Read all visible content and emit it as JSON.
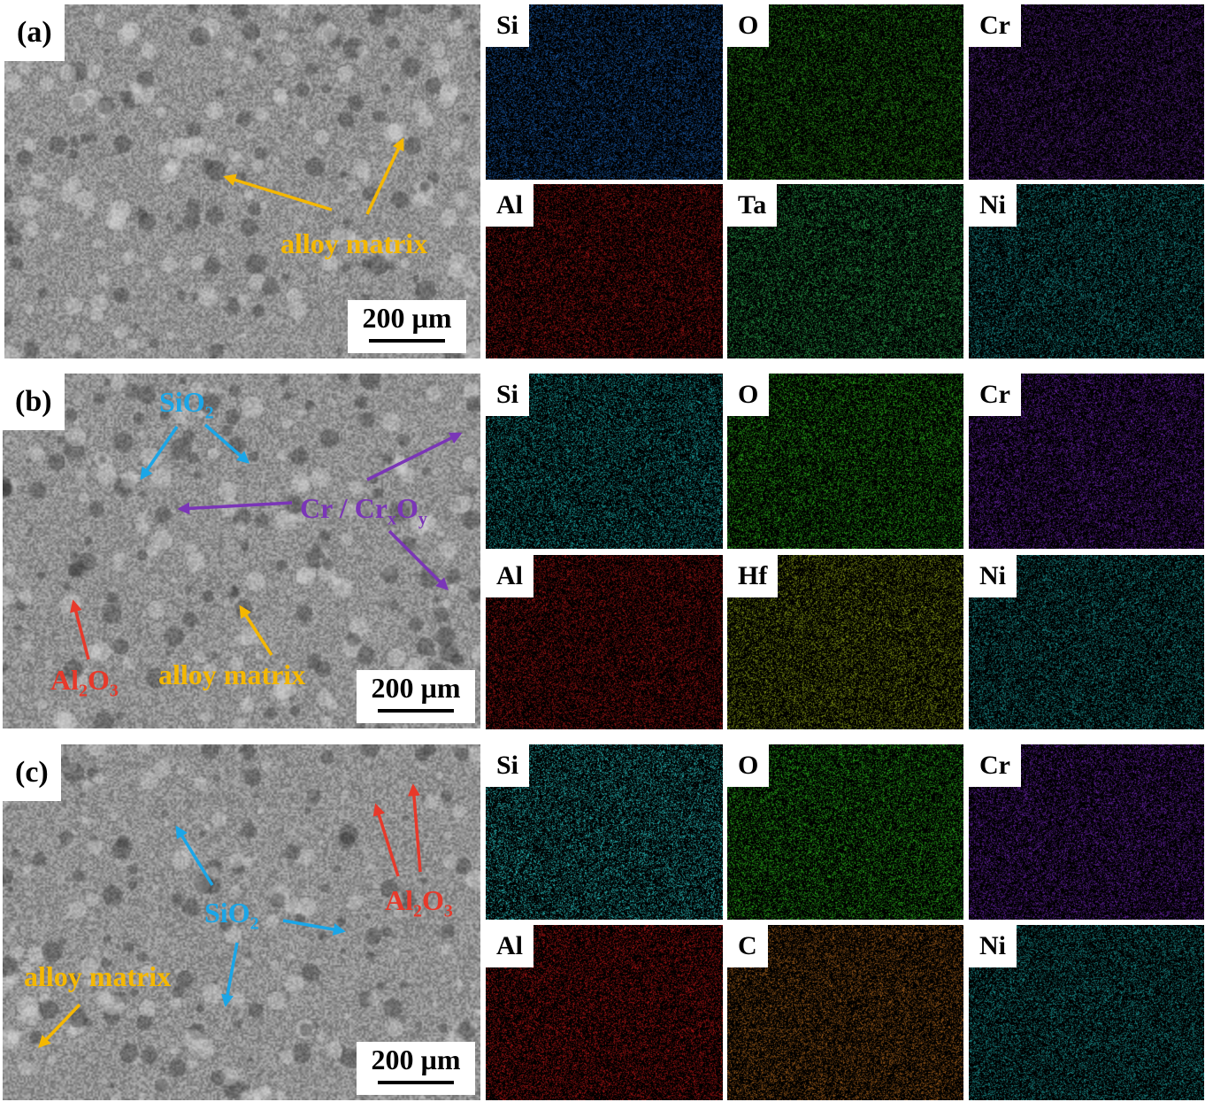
{
  "panels": [
    {
      "label": "(a)",
      "scale_bar": "200 µm",
      "annotations": [
        {
          "text": "alloy matrix",
          "color": "#f5b800"
        }
      ],
      "maps": [
        {
          "element": "Si",
          "color": "#1f6fd0"
        },
        {
          "element": "O",
          "color": "#2fae1e"
        },
        {
          "element": "Cr",
          "color": "#6a2aa8"
        },
        {
          "element": "Al",
          "color": "#c01818"
        },
        {
          "element": "Ta",
          "color": "#2fbf5a"
        },
        {
          "element": "Ni",
          "color": "#1fb0b0"
        }
      ]
    },
    {
      "label": "(b)",
      "scale_bar": "200 µm",
      "annotations": [
        {
          "text": "SiO",
          "sub": "2",
          "color": "#1aa6e8"
        },
        {
          "text": "Cr / Cr",
          "sub": "x",
          "text2": "O",
          "sub2": "y",
          "color": "#7a35b8"
        },
        {
          "text": "Al",
          "sub": "2",
          "text2": "O",
          "sub2": "3",
          "color": "#e8392a"
        },
        {
          "text": "alloy matrix",
          "color": "#f5b800"
        }
      ],
      "maps": [
        {
          "element": "Si",
          "color": "#20c8c8"
        },
        {
          "element": "O",
          "color": "#2fc81e"
        },
        {
          "element": "Cr",
          "color": "#7a2ac8"
        },
        {
          "element": "Al",
          "color": "#c01818"
        },
        {
          "element": "Hf",
          "color": "#a0b818"
        },
        {
          "element": "Ni",
          "color": "#1fb0b0"
        }
      ]
    },
    {
      "label": "(c)",
      "scale_bar": "200 µm",
      "annotations": [
        {
          "text": "SiO",
          "sub": "2",
          "color": "#1aa6e8"
        },
        {
          "text": "Al",
          "sub": "2",
          "text2": "O",
          "sub2": "3",
          "color": "#e8392a"
        },
        {
          "text": "alloy matrix",
          "color": "#f5b800"
        }
      ],
      "maps": [
        {
          "element": "Si",
          "color": "#30e0e0"
        },
        {
          "element": "O",
          "color": "#30d020"
        },
        {
          "element": "Cr",
          "color": "#7a2ac8"
        },
        {
          "element": "Al",
          "color": "#d01818"
        },
        {
          "element": "C",
          "color": "#c07020"
        },
        {
          "element": "Ni",
          "color": "#1fb0b0"
        }
      ]
    }
  ]
}
